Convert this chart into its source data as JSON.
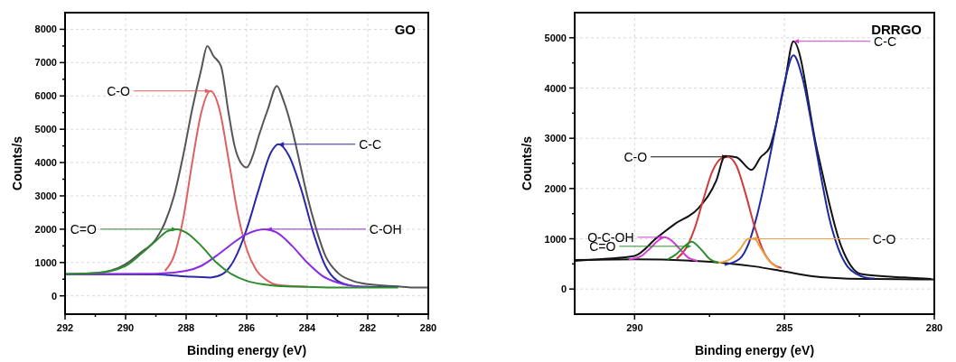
{
  "chart_data": [
    {
      "type": "line",
      "title": "GO",
      "xlabel": "Binding energy (eV)",
      "ylabel": "Counts/s",
      "xlim": [
        292,
        280
      ],
      "ylim": [
        -550,
        8500
      ],
      "xticks": [
        292,
        {
          "value": 291,
          "label": null
        },
        290,
        {
          "value": 289,
          "label": null
        },
        288,
        {
          "value": 287,
          "label": null
        },
        286,
        {
          "value": 285,
          "label": null
        },
        284,
        {
          "value": 283,
          "label": null
        },
        282,
        {
          "value": 281,
          "label": null
        },
        280
      ],
      "yticks": [
        0,
        {
          "value": 500,
          "label": null
        },
        1000,
        {
          "value": 1500,
          "label": null
        },
        2000,
        {
          "value": 2500,
          "label": null
        },
        3000,
        {
          "value": 3500,
          "label": null
        },
        4000,
        {
          "value": 4500,
          "label": null
        },
        5000,
        {
          "value": 5500,
          "label": null
        },
        6000,
        {
          "value": 6500,
          "label": null
        },
        7000,
        {
          "value": 7500,
          "label": null
        },
        8000
      ],
      "grid": true,
      "line_style": "solid",
      "marker": "none",
      "series": [
        {
          "color": "#555555",
          "x": [
            292,
            291,
            290,
            289.5,
            289,
            288.7,
            288.4,
            288.1,
            287.8,
            287.5,
            287.3,
            287.1,
            286.85,
            286.6,
            286.4,
            286.2,
            286,
            285.8,
            285.6,
            285.3,
            285,
            284.8,
            284.5,
            284.2,
            284,
            283.7,
            283.4,
            283,
            282.5,
            282,
            281,
            280.5,
            280
          ],
          "values": [
            650,
            680,
            950,
            1300,
            1700,
            2200,
            3000,
            4200,
            5600,
            6800,
            7500,
            7200,
            6900,
            5500,
            4500,
            4000,
            3850,
            4200,
            4800,
            5600,
            6300,
            5900,
            5000,
            3800,
            3000,
            2000,
            1200,
            700,
            450,
            350,
            280,
            250,
            250
          ]
        },
        {
          "color": "#e06060",
          "x": [
            288.7,
            288.4,
            288.1,
            287.8,
            287.5,
            287.2,
            286.9,
            286.6,
            286.3,
            286,
            285.7,
            285.3,
            285,
            284
          ],
          "values": [
            750,
            1200,
            2300,
            4000,
            5500,
            6150,
            5600,
            4100,
            2500,
            1400,
            800,
            450,
            330,
            270
          ]
        },
        {
          "color": "#2a2aa8",
          "x": [
            292,
            289,
            288,
            287.2,
            286.8,
            286.4,
            286,
            285.6,
            285.2,
            284.95,
            284.6,
            284.2,
            283.8,
            283.4,
            283,
            282.5,
            282,
            281
          ],
          "values": [
            650,
            640,
            580,
            550,
            650,
            1100,
            2000,
            3200,
            4300,
            4550,
            4200,
            3200,
            1900,
            900,
            450,
            300,
            270,
            260
          ]
        },
        {
          "color": "#8a2be2",
          "x": [
            292,
            289,
            288,
            287.5,
            287,
            286.5,
            286,
            285.4,
            285,
            284.5,
            284,
            283.5,
            283,
            282.5,
            282
          ],
          "values": [
            650,
            660,
            750,
            900,
            1200,
            1550,
            1850,
            2000,
            1900,
            1500,
            1000,
            600,
            400,
            300,
            270
          ]
        },
        {
          "color": "#2e8b2e",
          "x": [
            292,
            291,
            290,
            289.5,
            289,
            288.6,
            288.3,
            288,
            287.5,
            287,
            286.5,
            286,
            285.5,
            285,
            284,
            283,
            281
          ],
          "values": [
            650,
            680,
            900,
            1250,
            1650,
            1950,
            2000,
            1900,
            1500,
            1000,
            650,
            450,
            350,
            300,
            270,
            250,
            250
          ]
        }
      ],
      "annotations": [
        {
          "text": "C-O",
          "x": 287.2,
          "y": 6150
        },
        {
          "text": "C-C",
          "x": 284.95,
          "y": 4550
        },
        {
          "text": "C=O",
          "x": 288.3,
          "y": 2000
        },
        {
          "text": "C-OH",
          "x": 285.35,
          "y": 2000
        }
      ]
    },
    {
      "type": "line",
      "title": "DRRGO",
      "xlabel": "Binding energy (eV)",
      "ylabel": "Counts/s",
      "xlim": [
        292,
        280
      ],
      "ylim": [
        -500,
        5500
      ],
      "xticks": [
        290,
        {
          "value": 287.5,
          "label": null
        },
        285,
        {
          "value": 282.5,
          "label": null
        },
        280
      ],
      "yticks": [
        0,
        {
          "value": 500,
          "label": null
        },
        1000,
        {
          "value": 1500,
          "label": null
        },
        2000,
        {
          "value": 2500,
          "label": null
        },
        3000,
        {
          "value": 3500,
          "label": null
        },
        4000,
        {
          "value": 4500,
          "label": null
        },
        5000
      ],
      "grid": true,
      "line_style": "solid",
      "marker": "none",
      "series": [
        {
          "color": "#111111",
          "x": [
            292,
            291,
            290,
            289.26,
            288.67,
            287.87,
            287.28,
            286.98,
            286.6,
            286.1,
            285.8,
            285.5,
            285,
            284.7,
            283.9,
            283.1,
            282.45,
            281,
            280.1
          ],
          "values": [
            560,
            600,
            660,
            1020,
            1290,
            1610,
            2150,
            2650,
            2620,
            2370,
            2620,
            2810,
            4070,
            4930,
            2740,
            840,
            300,
            230,
            200
          ]
        },
        {
          "color": "#111111",
          "x": [
            292,
            290,
            288,
            286,
            285,
            284,
            283,
            282,
            280
          ],
          "values": [
            580,
            590,
            560,
            450,
            350,
            250,
            210,
            200,
            190
          ]
        },
        {
          "color": "#1f2aa0",
          "x": [
            287,
            286.5,
            286.2,
            285.9,
            285.6,
            285.3,
            285,
            284.7,
            284.4,
            284.1,
            283.8,
            283.5,
            283.2,
            282.9,
            282.6,
            282.3,
            282
          ],
          "values": [
            480,
            600,
            900,
            1500,
            2300,
            3200,
            4100,
            4650,
            4200,
            3300,
            2300,
            1400,
            800,
            450,
            300,
            230,
            210
          ]
        },
        {
          "color": "#d03a3a",
          "x": [
            288.6,
            288.3,
            288,
            287.7,
            287.4,
            287.1,
            286.9,
            286.6,
            286.3,
            286,
            285.7,
            285.4,
            285.1
          ],
          "values": [
            600,
            800,
            1200,
            1800,
            2350,
            2600,
            2630,
            2450,
            1900,
            1250,
            750,
            500,
            420
          ]
        },
        {
          "color": "#d040d0",
          "x": [
            290.2,
            289.8,
            289.5,
            289.2,
            289,
            288.8,
            288.5,
            288.2,
            287.9
          ],
          "values": [
            590,
            650,
            800,
            970,
            1030,
            980,
            800,
            620,
            560
          ]
        },
        {
          "color": "#2e8b2e",
          "x": [
            288.9,
            288.6,
            288.3,
            288.1,
            287.8,
            287.5,
            287.2
          ],
          "values": [
            590,
            700,
            870,
            940,
            800,
            600,
            520
          ]
        },
        {
          "color": "#f0a040",
          "x": [
            287.2,
            286.8,
            286.5,
            286.2,
            286,
            285.8,
            285.5,
            285.2
          ],
          "values": [
            520,
            600,
            780,
            1000,
            1000,
            820,
            550,
            420
          ]
        }
      ],
      "annotations": [
        {
          "text": "C-C",
          "x": 284.7,
          "y": 4930
        },
        {
          "text": "C-O",
          "x": 286.9,
          "y": 2630
        },
        {
          "text": "O-C-OH",
          "x": 289,
          "y": 1030
        },
        {
          "text": "C=O",
          "x": 288.1,
          "y": 850
        },
        {
          "text": "C-O",
          "x": 286.1,
          "y": 1000
        }
      ]
    }
  ]
}
